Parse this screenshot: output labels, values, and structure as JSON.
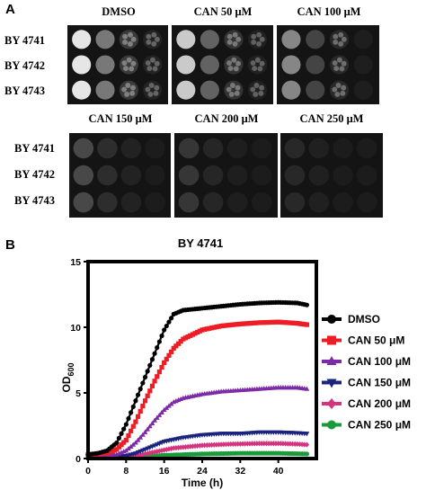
{
  "panel_a": {
    "letter": "A",
    "top_row": [
      {
        "label": "DMSO",
        "level": 1.0
      },
      {
        "label": "CAN 50 μM",
        "level": 0.85
      },
      {
        "label": "CAN 100 μM",
        "level": 0.6
      }
    ],
    "bottom_row": [
      {
        "label": "CAN 150 μM",
        "level": 0.35
      },
      {
        "label": "CAN 200 μM",
        "level": 0.25
      },
      {
        "label": "CAN 250 μM",
        "level": 0.15
      }
    ],
    "strains": [
      "BY 4741",
      "BY 4742",
      "BY 4743"
    ]
  },
  "panel_b": {
    "letter": "B",
    "chart_data": {
      "type": "line",
      "title": "BY 4741",
      "xlabel": "Time (h)",
      "ylabel": "OD600",
      "ylabel_main": "OD",
      "ylabel_sub": "600",
      "xlim": [
        0,
        48
      ],
      "ylim": [
        0,
        15
      ],
      "xticks": [
        0,
        8,
        16,
        24,
        32,
        40
      ],
      "yticks": [
        0,
        5,
        10,
        15
      ],
      "legend_position": "right",
      "series": [
        {
          "name": "DMSO",
          "color": "#000000",
          "marker": "circle",
          "points": [
            [
              0,
              0.3
            ],
            [
              2,
              0.4
            ],
            [
              4,
              0.6
            ],
            [
              6,
              1.2
            ],
            [
              8,
              2.6
            ],
            [
              10,
              4.4
            ],
            [
              12,
              6.2
            ],
            [
              14,
              8.0
            ],
            [
              16,
              9.8
            ],
            [
              18,
              11.0
            ],
            [
              20,
              11.3
            ],
            [
              24,
              11.45
            ],
            [
              28,
              11.6
            ],
            [
              32,
              11.75
            ],
            [
              36,
              11.85
            ],
            [
              40,
              11.9
            ],
            [
              44,
              11.85
            ],
            [
              46,
              11.7
            ]
          ]
        },
        {
          "name": "CAN 50 μM",
          "color": "#ee1c24",
          "marker": "square",
          "points": [
            [
              0,
              0.3
            ],
            [
              4,
              0.4
            ],
            [
              6,
              0.7
            ],
            [
              8,
              1.4
            ],
            [
              10,
              2.8
            ],
            [
              12,
              4.4
            ],
            [
              14,
              5.9
            ],
            [
              16,
              7.3
            ],
            [
              18,
              8.4
            ],
            [
              20,
              9.1
            ],
            [
              24,
              9.8
            ],
            [
              28,
              10.1
            ],
            [
              32,
              10.25
            ],
            [
              36,
              10.35
            ],
            [
              40,
              10.4
            ],
            [
              44,
              10.3
            ],
            [
              46,
              10.2
            ]
          ]
        },
        {
          "name": "CAN 100 μM",
          "color": "#7d2aa6",
          "marker": "triangle-up",
          "points": [
            [
              0,
              0.2
            ],
            [
              6,
              0.3
            ],
            [
              8,
              0.6
            ],
            [
              10,
              1.2
            ],
            [
              12,
              2.0
            ],
            [
              14,
              2.9
            ],
            [
              16,
              3.7
            ],
            [
              18,
              4.3
            ],
            [
              20,
              4.6
            ],
            [
              24,
              4.9
            ],
            [
              28,
              5.1
            ],
            [
              32,
              5.2
            ],
            [
              36,
              5.3
            ],
            [
              40,
              5.4
            ],
            [
              44,
              5.4
            ],
            [
              46,
              5.3
            ]
          ]
        },
        {
          "name": "CAN 150 μM",
          "color": "#1a237e",
          "marker": "triangle-down",
          "points": [
            [
              0,
              0.15
            ],
            [
              8,
              0.2
            ],
            [
              10,
              0.4
            ],
            [
              12,
              0.7
            ],
            [
              14,
              1.0
            ],
            [
              16,
              1.3
            ],
            [
              20,
              1.6
            ],
            [
              24,
              1.8
            ],
            [
              28,
              1.9
            ],
            [
              32,
              1.9
            ],
            [
              36,
              2.0
            ],
            [
              40,
              2.0
            ],
            [
              44,
              1.95
            ],
            [
              46,
              1.9
            ]
          ]
        },
        {
          "name": "CAN 200 μM",
          "color": "#d6337f",
          "marker": "diamond",
          "points": [
            [
              0,
              0.1
            ],
            [
              10,
              0.2
            ],
            [
              14,
              0.5
            ],
            [
              18,
              0.8
            ],
            [
              24,
              1.0
            ],
            [
              30,
              1.1
            ],
            [
              36,
              1.15
            ],
            [
              40,
              1.15
            ],
            [
              44,
              1.1
            ],
            [
              46,
              1.05
            ]
          ]
        },
        {
          "name": "CAN 250 μM",
          "color": "#1a9a3a",
          "marker": "circle",
          "points": [
            [
              0,
              0.1
            ],
            [
              12,
              0.15
            ],
            [
              16,
              0.25
            ],
            [
              24,
              0.35
            ],
            [
              32,
              0.4
            ],
            [
              40,
              0.4
            ],
            [
              46,
              0.35
            ]
          ]
        }
      ]
    }
  }
}
